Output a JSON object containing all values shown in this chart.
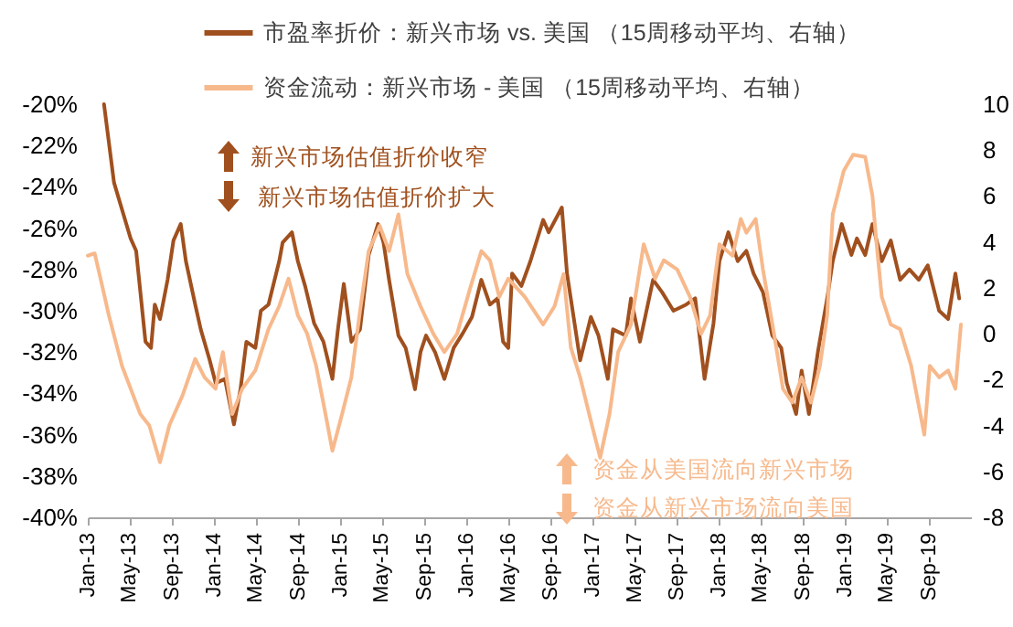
{
  "chart_data": {
    "type": "line",
    "annotations": [
      "新兴市场估值折价收窄",
      "新兴市场估值折价扩大",
      "资金从美国流向新兴市场",
      "资金从新兴市场流向美国"
    ],
    "xlim": [
      "2013-01",
      "2020-01"
    ],
    "xticks": [
      {
        "value": "2013-01",
        "label": "Jan-13"
      },
      {
        "value": "2013-05",
        "label": "May-13"
      },
      {
        "value": "2013-09",
        "label": "Sep-13"
      },
      {
        "value": "2014-01",
        "label": "Jan-14"
      },
      {
        "value": "2014-05",
        "label": "May-14"
      },
      {
        "value": "2014-09",
        "label": "Sep-14"
      },
      {
        "value": "2015-01",
        "label": "Jan-15"
      },
      {
        "value": "2015-05",
        "label": "May-15"
      },
      {
        "value": "2015-09",
        "label": "Sep-15"
      },
      {
        "value": "2016-01",
        "label": "Jan-16"
      },
      {
        "value": "2016-05",
        "label": "May-16"
      },
      {
        "value": "2016-09",
        "label": "Sep-16"
      },
      {
        "value": "2017-01",
        "label": "Jan-17"
      },
      {
        "value": "2017-05",
        "label": "May-17"
      },
      {
        "value": "2017-09",
        "label": "Sep-17"
      },
      {
        "value": "2018-01",
        "label": "Jan-18"
      },
      {
        "value": "2018-05",
        "label": "May-18"
      },
      {
        "value": "2018-09",
        "label": "Sep-18"
      },
      {
        "value": "2019-01",
        "label": "Jan-19"
      },
      {
        "value": "2019-05",
        "label": "May-19"
      },
      {
        "value": "2019-09",
        "label": "Sep-19"
      }
    ],
    "ylim": [
      -40,
      -20
    ],
    "yticks": [
      {
        "value": -20,
        "label": "-20%"
      },
      {
        "value": -22,
        "label": "-22%"
      },
      {
        "value": -24,
        "label": "-24%"
      },
      {
        "value": -26,
        "label": "-26%"
      },
      {
        "value": -28,
        "label": "-28%"
      },
      {
        "value": -30,
        "label": "-30%"
      },
      {
        "value": -32,
        "label": "-32%"
      },
      {
        "value": -34,
        "label": "-34%"
      },
      {
        "value": -36,
        "label": "-36%"
      },
      {
        "value": -38,
        "label": "-38%"
      },
      {
        "value": -40,
        "label": "-40%"
      }
    ],
    "y2lim": [
      -8,
      10
    ],
    "y2ticks": [
      10,
      8,
      6,
      4,
      2,
      0,
      -2,
      -4,
      -6,
      -8
    ],
    "legend": "top",
    "series": [
      {
        "name": "市盈率折价：新兴市场 vs. 美国 （15周移动平均、右轴）",
        "color": "#a0501e",
        "x": [
          "2013-02-17",
          "2013-03-18",
          "2013-05-05",
          "2013-05-21",
          "2013-06-17",
          "2013-07-03",
          "2013-07-14",
          "2013-07-29",
          "2013-08-20",
          "2013-09-06",
          "2013-09-27",
          "2013-10-12",
          "2013-11-08",
          "2013-11-24",
          "2013-12-20",
          "2014-01-06",
          "2014-02-02",
          "2014-02-28",
          "2014-03-19",
          "2014-04-05",
          "2014-05-01",
          "2014-05-17",
          "2014-06-08",
          "2014-07-09",
          "2014-07-19",
          "2014-08-15",
          "2014-09-01",
          "2014-09-22",
          "2014-10-18",
          "2014-11-14",
          "2014-12-10",
          "2014-12-26",
          "2015-01-12",
          "2015-02-03",
          "2015-02-28",
          "2015-03-25",
          "2015-04-21",
          "2015-05-07",
          "2015-05-23",
          "2015-06-19",
          "2015-07-10",
          "2015-08-06",
          "2015-08-22",
          "2015-09-07",
          "2015-10-03",
          "2015-10-30",
          "2015-11-26",
          "2015-12-22",
          "2016-01-18",
          "2016-02-14",
          "2016-03-10",
          "2016-04-01",
          "2016-04-17",
          "2016-05-02",
          "2016-05-13",
          "2016-06-09",
          "2016-07-05",
          "2016-08-11",
          "2016-08-27",
          "2016-10-04",
          "2016-10-19",
          "2016-11-26",
          "2016-12-27",
          "2017-01-18",
          "2017-02-14",
          "2017-03-01",
          "2017-04-07",
          "2017-04-22",
          "2017-05-18",
          "2017-06-25",
          "2017-07-21",
          "2017-08-23",
          "2017-09-29",
          "2017-10-25",
          "2017-11-21",
          "2017-12-17",
          "2018-01-03",
          "2018-01-29",
          "2018-02-25",
          "2018-03-22",
          "2018-04-12",
          "2018-05-09",
          "2018-06-05",
          "2018-07-01",
          "2018-07-17",
          "2018-08-13",
          "2018-08-29",
          "2018-09-19",
          "2018-10-15",
          "2018-11-11",
          "2018-11-27",
          "2018-12-23",
          "2019-01-20",
          "2019-02-05",
          "2019-03-01",
          "2019-03-22",
          "2019-04-18",
          "2019-05-14",
          "2019-06-10",
          "2019-07-07",
          "2019-08-03",
          "2019-08-29",
          "2019-10-01",
          "2019-10-27",
          "2019-11-17",
          "2019-11-28"
        ],
        "values": [
          -20.0,
          -23.8,
          -26.5,
          -27.1,
          -31.5,
          -31.8,
          -29.7,
          -30.4,
          -28.5,
          -26.6,
          -25.8,
          -27.6,
          -29.7,
          -30.9,
          -32.4,
          -33.5,
          -33.3,
          -35.5,
          -33.8,
          -31.5,
          -31.8,
          -30.0,
          -29.7,
          -27.6,
          -26.7,
          -26.2,
          -27.6,
          -28.8,
          -30.6,
          -31.5,
          -33.3,
          -30.9,
          -28.7,
          -31.5,
          -30.9,
          -27.3,
          -25.8,
          -26.7,
          -28.5,
          -31.2,
          -31.8,
          -33.8,
          -32.0,
          -31.2,
          -32.0,
          -33.3,
          -31.8,
          -31.1,
          -30.3,
          -28.5,
          -29.7,
          -29.4,
          -31.5,
          -31.8,
          -28.2,
          -28.8,
          -27.6,
          -25.6,
          -26.2,
          -25.0,
          -28.2,
          -32.4,
          -30.3,
          -31.2,
          -33.3,
          -30.9,
          -31.2,
          -29.4,
          -31.5,
          -28.5,
          -29.1,
          -30.0,
          -29.7,
          -29.4,
          -33.3,
          -30.6,
          -27.6,
          -26.2,
          -27.6,
          -27.1,
          -28.2,
          -29.1,
          -31.2,
          -31.8,
          -33.5,
          -35.0,
          -32.9,
          -35.0,
          -32.0,
          -29.4,
          -27.6,
          -25.8,
          -27.3,
          -26.5,
          -27.3,
          -25.8,
          -27.6,
          -26.6,
          -28.5,
          -28.0,
          -28.5,
          -27.8,
          -30.0,
          -30.4,
          -28.2,
          -29.4
        ]
      },
      {
        "name": "资金流动：新兴市场 - 美国 （15周移动平均、右轴）",
        "color": "#f7b98c",
        "axis": "y2",
        "x": [
          "2013-01-01",
          "2013-01-21",
          "2013-02-07",
          "2013-03-03",
          "2013-04-10",
          "2013-06-02",
          "2013-06-28",
          "2013-07-29",
          "2013-08-25",
          "2013-10-02",
          "2013-11-08",
          "2013-12-05",
          "2014-01-06",
          "2014-01-27",
          "2014-02-23",
          "2014-03-24",
          "2014-05-01",
          "2014-06-08",
          "2014-07-09",
          "2014-08-05",
          "2014-09-01",
          "2014-09-28",
          "2014-10-24",
          "2014-11-20",
          "2014-12-10",
          "2015-01-07",
          "2015-02-03",
          "2015-02-28",
          "2015-03-25",
          "2015-04-26",
          "2015-05-23",
          "2015-06-19",
          "2015-07-15",
          "2015-08-22",
          "2015-09-28",
          "2015-10-30",
          "2015-12-06",
          "2016-01-13",
          "2016-02-14",
          "2016-03-10",
          "2016-04-06",
          "2016-05-02",
          "2016-06-19",
          "2016-08-11",
          "2016-09-13",
          "2016-10-09",
          "2016-10-30",
          "2016-11-26",
          "2016-12-27",
          "2017-01-23",
          "2017-02-19",
          "2017-03-16",
          "2017-04-22",
          "2017-05-29",
          "2017-07-01",
          "2017-07-26",
          "2017-09-03",
          "2017-10-10",
          "2017-11-11",
          "2017-12-07",
          "2018-01-03",
          "2018-02-10",
          "2018-03-06",
          "2018-03-22",
          "2018-04-18",
          "2018-05-09",
          "2018-06-10",
          "2018-07-06",
          "2018-08-02",
          "2018-08-29",
          "2018-09-25",
          "2018-10-21",
          "2018-11-11",
          "2018-11-27",
          "2018-12-29",
          "2019-01-25",
          "2019-03-01",
          "2019-03-22",
          "2019-04-03",
          "2019-04-18",
          "2019-05-14",
          "2019-06-10",
          "2019-07-12",
          "2019-08-19",
          "2019-09-04",
          "2019-10-01",
          "2019-10-27",
          "2019-11-17",
          "2019-12-03"
        ],
        "values": [
          3.4,
          3.5,
          2.4,
          0.8,
          -1.4,
          -3.5,
          -4.0,
          -5.6,
          -4.0,
          -2.7,
          -1.1,
          -1.9,
          -2.4,
          -0.8,
          -3.5,
          -2.4,
          -1.6,
          0.2,
          1.2,
          2.4,
          0.8,
          0.0,
          -1.4,
          -3.5,
          -5.1,
          -3.5,
          -1.9,
          1.0,
          3.6,
          4.7,
          3.6,
          5.2,
          2.6,
          1.2,
          0.0,
          -0.8,
          0.0,
          2.0,
          3.6,
          3.2,
          1.6,
          2.4,
          1.6,
          0.4,
          1.2,
          2.6,
          -0.6,
          -1.9,
          -3.8,
          -5.4,
          -3.5,
          -0.8,
          0.4,
          3.9,
          2.4,
          3.2,
          2.8,
          1.6,
          0.0,
          0.8,
          3.9,
          3.4,
          5.0,
          4.4,
          5.0,
          2.8,
          0.0,
          -2.4,
          -3.0,
          -1.9,
          -3.0,
          -1.4,
          0.8,
          5.2,
          7.1,
          7.8,
          7.7,
          6.0,
          3.9,
          1.6,
          0.4,
          0.2,
          -1.4,
          -4.4,
          -1.4,
          -1.9,
          -1.6,
          -2.4,
          0.4
        ]
      }
    ]
  }
}
